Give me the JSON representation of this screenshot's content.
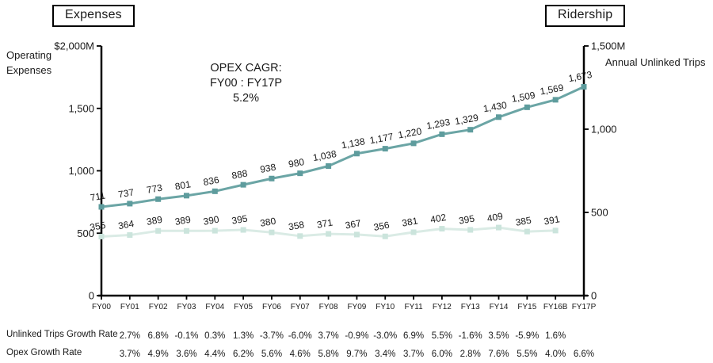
{
  "titles": {
    "left_box": "Expenses",
    "right_box": "Ridership"
  },
  "left_axis": {
    "title_line1": "Operating",
    "title_line2": "Expenses",
    "tick_values": [
      2000,
      1500,
      1000,
      500,
      0
    ],
    "tick_labels": [
      "$2,000M",
      "1,500",
      "1,000",
      "500",
      "0"
    ]
  },
  "right_axis": {
    "title": "Annual Unlinked Trips",
    "tick_values": [
      1500,
      1000,
      500,
      0
    ],
    "tick_labels": [
      "1,500M",
      "1,000",
      "500",
      "0"
    ]
  },
  "annotation": {
    "line1": "OPEX CAGR:",
    "line2": "FY00 : FY17P",
    "line3": "5.2%"
  },
  "chart_data": {
    "type": "line",
    "categories": [
      "FY00",
      "FY01",
      "FY02",
      "FY03",
      "FY04",
      "FY05",
      "FY06",
      "FY07",
      "FY08",
      "FY09",
      "FY10",
      "FY11",
      "FY12",
      "FY13",
      "FY14",
      "FY15",
      "FY16B",
      "FY17P"
    ],
    "series": [
      {
        "name": "Operating Expenses",
        "axis": "left",
        "color": "#6BA5A5",
        "marker_color": "#5E9C9D",
        "values": [
          711,
          737,
          773,
          801,
          836,
          888,
          938,
          980,
          1038,
          1138,
          1177,
          1220,
          1293,
          1329,
          1430,
          1509,
          1569,
          1673
        ]
      },
      {
        "name": "Annual Unlinked Trips",
        "axis": "right",
        "color": "#DAEBE5",
        "marker_color": "#CBE4DC",
        "values": [
          355,
          364,
          389,
          389,
          390,
          395,
          380,
          358,
          371,
          367,
          356,
          381,
          402,
          395,
          409,
          385,
          391
        ]
      }
    ],
    "left_ylim": [
      0,
      2000
    ],
    "right_ylim": [
      0,
      1500
    ],
    "grid": false,
    "legend": "none"
  },
  "table": {
    "rows": [
      {
        "label": "Unlinked Trips Growth Rate",
        "start_category_index": 1,
        "values": [
          "2.7%",
          "6.8%",
          "-0.1%",
          "0.3%",
          "1.3%",
          "-3.7%",
          "-6.0%",
          "3.7%",
          "-0.9%",
          "-3.0%",
          "6.9%",
          "5.5%",
          "-1.6%",
          "3.5%",
          "-5.9%",
          "1.6%"
        ]
      },
      {
        "label": "Opex Growth Rate",
        "start_category_index": 1,
        "values": [
          "3.7%",
          "4.9%",
          "3.6%",
          "4.4%",
          "6.2%",
          "5.6%",
          "4.6%",
          "5.8%",
          "9.7%",
          "3.4%",
          "3.7%",
          "6.0%",
          "2.8%",
          "7.6%",
          "5.5%",
          "4.0%",
          "6.6%"
        ]
      }
    ]
  },
  "colors": {
    "axis": "#000000",
    "text": "#1a1a1a"
  }
}
